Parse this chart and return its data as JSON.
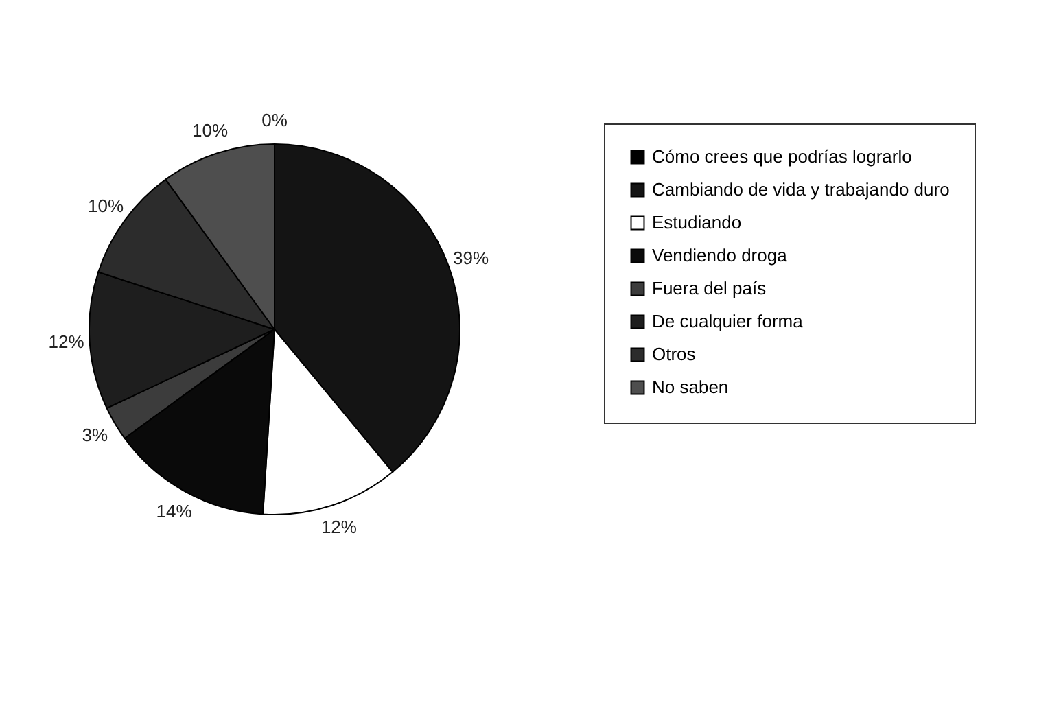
{
  "chart_data": {
    "type": "pie",
    "categories": [
      "Cómo crees que podrías lograrlo",
      "Cambiando de vida y trabajando duro",
      "Estudiando",
      "Vendiendo droga",
      "Fuera del  país",
      "De cualquier forma",
      "Otros",
      "No saben"
    ],
    "values": [
      0,
      39,
      12,
      14,
      3,
      12,
      10,
      10
    ],
    "value_labels": [
      "0%",
      "39%",
      "12%",
      "14%",
      "3%",
      "12%",
      "10%",
      "10%"
    ],
    "colors": [
      "#000000",
      "#141414",
      "#ffffff",
      "#0a0a0a",
      "#3c3c3c",
      "#1e1e1e",
      "#2c2c2c",
      "#4e4e4e"
    ],
    "legend": "right"
  }
}
